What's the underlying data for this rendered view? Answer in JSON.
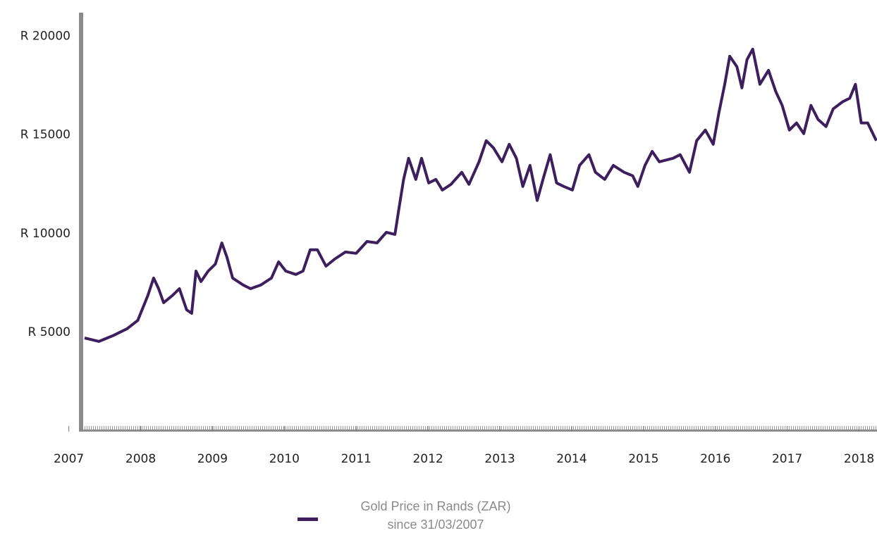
{
  "chart_data": {
    "type": "line",
    "series": [
      {
        "name": "Gold Price in Rands (ZAR)",
        "color": "#3d1f5e",
        "x": [
          2007.22,
          2007.42,
          2007.61,
          2007.81,
          2007.96,
          2008.1,
          2008.18,
          2008.25,
          2008.32,
          2008.44,
          2008.54,
          2008.64,
          2008.71,
          2008.77,
          2008.84,
          2008.94,
          2009.04,
          2009.13,
          2009.2,
          2009.28,
          2009.43,
          2009.53,
          2009.67,
          2009.82,
          2009.92,
          2010.02,
          2010.16,
          2010.26,
          2010.36,
          2010.46,
          2010.58,
          2010.7,
          2010.85,
          2011.0,
          2011.15,
          2011.29,
          2011.42,
          2011.54,
          2011.59,
          2011.66,
          2011.73,
          2011.83,
          2011.91,
          2012.01,
          2012.11,
          2012.2,
          2012.32,
          2012.47,
          2012.57,
          2012.71,
          2012.81,
          2012.91,
          2013.03,
          2013.13,
          2013.23,
          2013.32,
          2013.42,
          2013.52,
          2013.6,
          2013.7,
          2013.79,
          2013.89,
          2014.01,
          2014.11,
          2014.24,
          2014.33,
          2014.46,
          2014.58,
          2014.73,
          2014.85,
          2014.92,
          2015.02,
          2015.12,
          2015.22,
          2015.41,
          2015.51,
          2015.64,
          2015.74,
          2015.86,
          2015.97,
          2016.05,
          2016.13,
          2016.2,
          2016.3,
          2016.37,
          2016.44,
          2016.52,
          2016.62,
          2016.74,
          2016.84,
          2016.93,
          2017.03,
          2017.13,
          2017.23,
          2017.33,
          2017.43,
          2017.54,
          2017.64,
          2017.77,
          2017.87,
          2017.95,
          2018.03,
          2018.12,
          2018.24
        ],
        "values": [
          4710,
          4535,
          4820,
          5180,
          5600,
          6860,
          7750,
          7210,
          6500,
          6860,
          7210,
          6140,
          5960,
          8100,
          7570,
          8100,
          8460,
          9530,
          8820,
          7750,
          7390,
          7210,
          7390,
          7750,
          8570,
          8100,
          7930,
          8100,
          9180,
          9180,
          8350,
          8710,
          9070,
          9000,
          9600,
          9530,
          10070,
          9960,
          11140,
          12750,
          13820,
          12750,
          13820,
          12570,
          12750,
          12210,
          12500,
          13110,
          12500,
          13640,
          14710,
          14350,
          13640,
          14530,
          13820,
          12390,
          13460,
          11680,
          12750,
          14000,
          12570,
          12390,
          12210,
          13460,
          14000,
          13110,
          12750,
          13460,
          13110,
          12930,
          12390,
          13460,
          14170,
          13640,
          13820,
          14000,
          13110,
          14710,
          15250,
          14530,
          16140,
          17570,
          18990,
          18460,
          17390,
          18820,
          19350,
          17570,
          18280,
          17210,
          16500,
          15250,
          15610,
          15070,
          16500,
          15790,
          15430,
          16320,
          16680,
          16860,
          17570,
          15610,
          15610,
          14710
        ]
      }
    ],
    "legend_note": "since 31/03/2007",
    "xlim": [
      2007.2,
      2018.25
    ],
    "xticks": [
      2007,
      2008,
      2009,
      2010,
      2011,
      2012,
      2013,
      2014,
      2015,
      2016,
      2017,
      2018
    ],
    "ylim": [
      0,
      21200
    ],
    "yticks": [
      {
        "value": 5000,
        "label": "R 5000"
      },
      {
        "value": 10000,
        "label": "R 10000"
      },
      {
        "value": 15000,
        "label": "R 15000"
      },
      {
        "value": 20000,
        "label": "R 20000"
      }
    ]
  }
}
